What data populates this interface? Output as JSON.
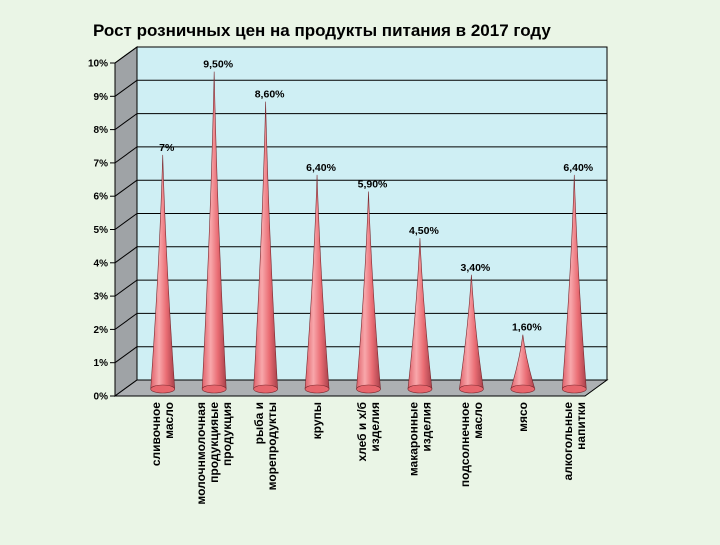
{
  "chart_data": {
    "type": "bar",
    "title": "Рост розничных цен на продукты питания в 2017 году",
    "xlabel": "",
    "ylabel": "",
    "ylim": [
      0,
      10
    ],
    "yticks": [
      "0%",
      "1%",
      "2%",
      "3%",
      "4%",
      "5%",
      "6%",
      "7%",
      "8%",
      "9%",
      "10%"
    ],
    "categories": [
      [
        "сливочное",
        "масло"
      ],
      [
        "молочнмолочная",
        "продукцияые",
        "продукция"
      ],
      [
        "рыба и",
        "морепродукты"
      ],
      [
        "крупы"
      ],
      [
        "хлеб и х/б",
        "изделия"
      ],
      [
        "макаронные",
        "изделия"
      ],
      [
        "подсолнечное",
        "масло"
      ],
      [
        "мясо"
      ],
      [
        "алкогольные",
        "напитки"
      ]
    ],
    "values": [
      7.0,
      9.5,
      8.6,
      6.4,
      5.9,
      4.5,
      3.4,
      1.6,
      6.4
    ],
    "data_labels": [
      "7%",
      "9,50%",
      "8,60%",
      "6,40%",
      "5,90%",
      "4,50%",
      "3,40%",
      "1,60%",
      "6,40%"
    ],
    "grid": true,
    "legend": "none",
    "colors": {
      "page_background": "#eaf5e6",
      "plot_background": "#cfeff4",
      "side_wall": "#9fa3a6",
      "floor": "#adb0b3",
      "gridline": "#000000",
      "cone_light": "#f7a3a7",
      "cone_mid": "#e8666d",
      "cone_dark": "#a53a42"
    }
  }
}
